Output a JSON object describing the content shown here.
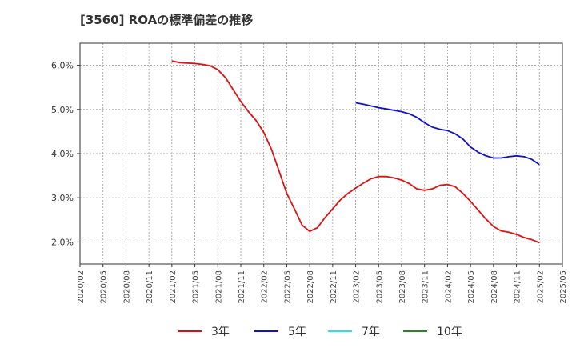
{
  "chart_data": {
    "type": "line",
    "title": "[3560]  ROAの標準偏差の推移",
    "xlabel": "",
    "ylabel": "",
    "ylim": [
      1.5,
      6.5
    ],
    "y_ticks": [
      2.0,
      3.0,
      4.0,
      5.0,
      6.0
    ],
    "y_tick_labels": [
      "2.0%",
      "3.0%",
      "4.0%",
      "5.0%",
      "6.0%"
    ],
    "x_tick_labels": [
      "2020/02",
      "2020/05",
      "2020/08",
      "2020/11",
      "2021/02",
      "2021/05",
      "2021/08",
      "2021/11",
      "2022/02",
      "2022/05",
      "2022/08",
      "2022/11",
      "2023/02",
      "2023/05",
      "2023/08",
      "2023/11",
      "2024/02",
      "2024/05",
      "2024/08",
      "2024/11",
      "2025/02",
      "2025/05"
    ],
    "grid": true,
    "legend_position": "bottom",
    "series": [
      {
        "name": "3年",
        "color": "#dd1111",
        "x": [
          "2021/02",
          "2021/03",
          "2021/04",
          "2021/05",
          "2021/06",
          "2021/07",
          "2021/08",
          "2021/09",
          "2021/10",
          "2021/11",
          "2021/12",
          "2022/01",
          "2022/02",
          "2022/03",
          "2022/04",
          "2022/05",
          "2022/06",
          "2022/07",
          "2022/08",
          "2022/09",
          "2022/10",
          "2022/11",
          "2022/12",
          "2023/01",
          "2023/02",
          "2023/03",
          "2023/04",
          "2023/05",
          "2023/06",
          "2023/07",
          "2023/08",
          "2023/09",
          "2023/10",
          "2023/11",
          "2023/12",
          "2024/01",
          "2024/02",
          "2024/03",
          "2024/04",
          "2024/05",
          "2024/06",
          "2024/07",
          "2024/08",
          "2024/09",
          "2024/10",
          "2024/11",
          "2024/12",
          "2025/01",
          "2025/02"
        ],
        "values": [
          6.1,
          6.06,
          6.05,
          6.04,
          6.02,
          5.99,
          5.9,
          5.72,
          5.45,
          5.18,
          4.95,
          4.75,
          4.48,
          4.1,
          3.6,
          3.1,
          2.75,
          2.38,
          2.24,
          2.32,
          2.55,
          2.75,
          2.95,
          3.1,
          3.22,
          3.33,
          3.43,
          3.48,
          3.48,
          3.45,
          3.4,
          3.32,
          3.2,
          3.17,
          3.2,
          3.28,
          3.3,
          3.25,
          3.1,
          2.92,
          2.72,
          2.52,
          2.35,
          2.25,
          2.22,
          2.17,
          2.1,
          2.05,
          1.98
        ]
      },
      {
        "name": "5年",
        "color": "#1111cc",
        "x": [
          "2023/02",
          "2023/03",
          "2023/04",
          "2023/05",
          "2023/06",
          "2023/07",
          "2023/08",
          "2023/09",
          "2023/10",
          "2023/11",
          "2023/12",
          "2024/01",
          "2024/02",
          "2024/03",
          "2024/04",
          "2024/05",
          "2024/06",
          "2024/07",
          "2024/08",
          "2024/09",
          "2024/10",
          "2024/11",
          "2024/12",
          "2025/01",
          "2025/02"
        ],
        "values": [
          5.15,
          5.12,
          5.08,
          5.04,
          5.01,
          4.98,
          4.95,
          4.9,
          4.82,
          4.7,
          4.6,
          4.55,
          4.52,
          4.45,
          4.33,
          4.15,
          4.03,
          3.95,
          3.9,
          3.9,
          3.93,
          3.95,
          3.93,
          3.87,
          3.75
        ]
      },
      {
        "name": "7年",
        "color": "#22e5e5",
        "x": [],
        "values": []
      },
      {
        "name": "10年",
        "color": "#228b22",
        "x": [],
        "values": []
      }
    ]
  }
}
